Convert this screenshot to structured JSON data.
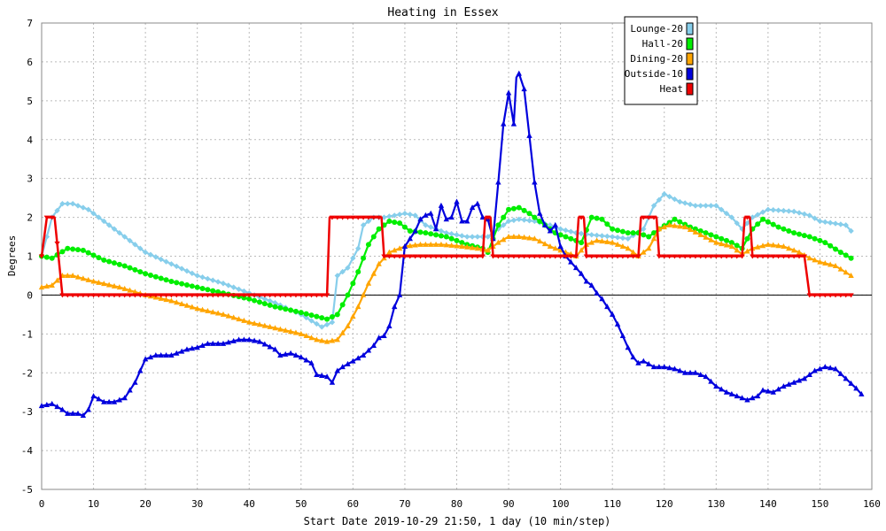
{
  "chart_data": {
    "type": "line",
    "title": "Heating in Essex",
    "xlabel": "Start Date 2019-10-29 21:50, 1 day (10 min/step)",
    "ylabel": "Degrees",
    "xlim": [
      0,
      160
    ],
    "ylim": [
      -5,
      7
    ],
    "x_ticks": [
      0,
      10,
      20,
      30,
      40,
      50,
      60,
      70,
      80,
      90,
      100,
      110,
      120,
      130,
      140,
      150,
      160
    ],
    "y_ticks": [
      -5,
      -4,
      -3,
      -2,
      -1,
      0,
      1,
      2,
      3,
      4,
      5,
      6,
      7
    ],
    "grid": true,
    "legend_position": "top-right",
    "series": [
      {
        "name": "Lounge-20",
        "color": "#87ceeb",
        "marker": "diamond",
        "points": [
          [
            0,
            1.0
          ],
          [
            2,
            2.0
          ],
          [
            4,
            2.35
          ],
          [
            6,
            2.35
          ],
          [
            9,
            2.2
          ],
          [
            12,
            1.9
          ],
          [
            16,
            1.5
          ],
          [
            20,
            1.1
          ],
          [
            25,
            0.8
          ],
          [
            30,
            0.5
          ],
          [
            35,
            0.3
          ],
          [
            40,
            0.05
          ],
          [
            45,
            -0.2
          ],
          [
            50,
            -0.5
          ],
          [
            54,
            -0.82
          ],
          [
            56,
            -0.7
          ],
          [
            57,
            0.5
          ],
          [
            59,
            0.7
          ],
          [
            61,
            1.2
          ],
          [
            62,
            1.8
          ],
          [
            64,
            2.0
          ],
          [
            66,
            2.0
          ],
          [
            70,
            2.1
          ],
          [
            72,
            2.05
          ],
          [
            74,
            1.8
          ],
          [
            78,
            1.6
          ],
          [
            82,
            1.5
          ],
          [
            86,
            1.5
          ],
          [
            88,
            1.7
          ],
          [
            90,
            1.9
          ],
          [
            92,
            1.95
          ],
          [
            95,
            1.9
          ],
          [
            98,
            1.8
          ],
          [
            100,
            1.7
          ],
          [
            103,
            1.6
          ],
          [
            106,
            1.55
          ],
          [
            110,
            1.5
          ],
          [
            113,
            1.45
          ],
          [
            116,
            1.7
          ],
          [
            118,
            2.3
          ],
          [
            120,
            2.6
          ],
          [
            123,
            2.4
          ],
          [
            126,
            2.3
          ],
          [
            130,
            2.3
          ],
          [
            133,
            2.0
          ],
          [
            135,
            1.7
          ],
          [
            137,
            2.0
          ],
          [
            140,
            2.2
          ],
          [
            145,
            2.15
          ],
          [
            148,
            2.05
          ],
          [
            150,
            1.9
          ],
          [
            155,
            1.8
          ],
          [
            156,
            1.65
          ]
        ]
      },
      {
        "name": "Hall-20",
        "color": "#00ee00",
        "marker": "circle",
        "points": [
          [
            0,
            1.0
          ],
          [
            2,
            0.95
          ],
          [
            5,
            1.2
          ],
          [
            8,
            1.15
          ],
          [
            12,
            0.9
          ],
          [
            16,
            0.75
          ],
          [
            20,
            0.55
          ],
          [
            25,
            0.35
          ],
          [
            30,
            0.2
          ],
          [
            35,
            0.05
          ],
          [
            40,
            -0.1
          ],
          [
            45,
            -0.3
          ],
          [
            50,
            -0.45
          ],
          [
            53,
            -0.55
          ],
          [
            55,
            -0.62
          ],
          [
            57,
            -0.5
          ],
          [
            59,
            0.0
          ],
          [
            61,
            0.6
          ],
          [
            63,
            1.3
          ],
          [
            65,
            1.7
          ],
          [
            67,
            1.9
          ],
          [
            69,
            1.85
          ],
          [
            71,
            1.65
          ],
          [
            74,
            1.6
          ],
          [
            78,
            1.5
          ],
          [
            82,
            1.3
          ],
          [
            85,
            1.2
          ],
          [
            86,
            1.1
          ],
          [
            88,
            1.8
          ],
          [
            90,
            2.2
          ],
          [
            92,
            2.25
          ],
          [
            94,
            2.1
          ],
          [
            96,
            1.9
          ],
          [
            99,
            1.6
          ],
          [
            102,
            1.45
          ],
          [
            104,
            1.35
          ],
          [
            106,
            2.0
          ],
          [
            108,
            1.95
          ],
          [
            110,
            1.7
          ],
          [
            113,
            1.6
          ],
          [
            115,
            1.6
          ],
          [
            117,
            1.5
          ],
          [
            119,
            1.7
          ],
          [
            122,
            1.95
          ],
          [
            125,
            1.75
          ],
          [
            128,
            1.6
          ],
          [
            131,
            1.45
          ],
          [
            133,
            1.35
          ],
          [
            135,
            1.2
          ],
          [
            137,
            1.7
          ],
          [
            139,
            1.95
          ],
          [
            142,
            1.75
          ],
          [
            145,
            1.6
          ],
          [
            148,
            1.5
          ],
          [
            151,
            1.35
          ],
          [
            154,
            1.1
          ],
          [
            156,
            0.95
          ]
        ]
      },
      {
        "name": "Dining-20",
        "color": "#ffa500",
        "marker": "triangle",
        "points": [
          [
            0,
            0.2
          ],
          [
            2,
            0.25
          ],
          [
            4,
            0.5
          ],
          [
            6,
            0.5
          ],
          [
            10,
            0.35
          ],
          [
            15,
            0.2
          ],
          [
            20,
            0.0
          ],
          [
            25,
            -0.15
          ],
          [
            30,
            -0.35
          ],
          [
            35,
            -0.5
          ],
          [
            40,
            -0.7
          ],
          [
            45,
            -0.85
          ],
          [
            50,
            -1.0
          ],
          [
            53,
            -1.15
          ],
          [
            55,
            -1.2
          ],
          [
            57,
            -1.15
          ],
          [
            59,
            -0.8
          ],
          [
            61,
            -0.3
          ],
          [
            63,
            0.3
          ],
          [
            65,
            0.8
          ],
          [
            67,
            1.1
          ],
          [
            70,
            1.25
          ],
          [
            73,
            1.3
          ],
          [
            77,
            1.3
          ],
          [
            81,
            1.25
          ],
          [
            84,
            1.2
          ],
          [
            86,
            1.15
          ],
          [
            88,
            1.35
          ],
          [
            90,
            1.5
          ],
          [
            92,
            1.5
          ],
          [
            95,
            1.45
          ],
          [
            98,
            1.25
          ],
          [
            101,
            1.1
          ],
          [
            103,
            1.0
          ],
          [
            105,
            1.3
          ],
          [
            107,
            1.4
          ],
          [
            110,
            1.35
          ],
          [
            113,
            1.2
          ],
          [
            115,
            1.0
          ],
          [
            117,
            1.2
          ],
          [
            119,
            1.7
          ],
          [
            121,
            1.8
          ],
          [
            124,
            1.75
          ],
          [
            127,
            1.55
          ],
          [
            130,
            1.35
          ],
          [
            133,
            1.25
          ],
          [
            135,
            1.05
          ],
          [
            137,
            1.2
          ],
          [
            140,
            1.3
          ],
          [
            143,
            1.25
          ],
          [
            146,
            1.1
          ],
          [
            148,
            0.95
          ],
          [
            150,
            0.85
          ],
          [
            153,
            0.75
          ],
          [
            156,
            0.5
          ]
        ]
      },
      {
        "name": "Outside-10",
        "color": "#0000dd",
        "marker": "triangle",
        "points": [
          [
            0,
            -2.85
          ],
          [
            2,
            -2.8
          ],
          [
            4,
            -2.95
          ],
          [
            5,
            -3.05
          ],
          [
            7,
            -3.05
          ],
          [
            8,
            -3.1
          ],
          [
            9,
            -2.95
          ],
          [
            10,
            -2.6
          ],
          [
            12,
            -2.75
          ],
          [
            14,
            -2.75
          ],
          [
            16,
            -2.65
          ],
          [
            18,
            -2.25
          ],
          [
            20,
            -1.65
          ],
          [
            22,
            -1.55
          ],
          [
            25,
            -1.55
          ],
          [
            28,
            -1.4
          ],
          [
            30,
            -1.35
          ],
          [
            32,
            -1.25
          ],
          [
            35,
            -1.25
          ],
          [
            38,
            -1.15
          ],
          [
            40,
            -1.15
          ],
          [
            42,
            -1.2
          ],
          [
            45,
            -1.4
          ],
          [
            46,
            -1.55
          ],
          [
            48,
            -1.5
          ],
          [
            50,
            -1.6
          ],
          [
            52,
            -1.75
          ],
          [
            53,
            -2.05
          ],
          [
            55,
            -2.1
          ],
          [
            56,
            -2.25
          ],
          [
            57,
            -1.95
          ],
          [
            58,
            -1.85
          ],
          [
            60,
            -1.7
          ],
          [
            62,
            -1.55
          ],
          [
            64,
            -1.3
          ],
          [
            65,
            -1.1
          ],
          [
            66,
            -1.05
          ],
          [
            67,
            -0.8
          ],
          [
            68,
            -0.3
          ],
          [
            69,
            0.0
          ],
          [
            70,
            1.25
          ],
          [
            72,
            1.65
          ],
          [
            73,
            1.95
          ],
          [
            74,
            2.05
          ],
          [
            75,
            2.1
          ],
          [
            76,
            1.7
          ],
          [
            77,
            2.3
          ],
          [
            78,
            1.95
          ],
          [
            79,
            2.0
          ],
          [
            80,
            2.4
          ],
          [
            81,
            1.9
          ],
          [
            82,
            1.9
          ],
          [
            83,
            2.25
          ],
          [
            84,
            2.35
          ],
          [
            85,
            2.0
          ],
          [
            86,
            1.95
          ],
          [
            87,
            1.45
          ],
          [
            88,
            2.9
          ],
          [
            89,
            4.4
          ],
          [
            90,
            5.2
          ],
          [
            91,
            4.4
          ],
          [
            91.5,
            5.6
          ],
          [
            92,
            5.7
          ],
          [
            93,
            5.3
          ],
          [
            94,
            4.1
          ],
          [
            95,
            2.9
          ],
          [
            96,
            2.1
          ],
          [
            97,
            1.8
          ],
          [
            98,
            1.65
          ],
          [
            99,
            1.8
          ],
          [
            100,
            1.25
          ],
          [
            101,
            1.0
          ],
          [
            102,
            0.85
          ],
          [
            103,
            0.7
          ],
          [
            104,
            0.55
          ],
          [
            105,
            0.35
          ],
          [
            106,
            0.25
          ],
          [
            107,
            0.05
          ],
          [
            108,
            -0.1
          ],
          [
            109,
            -0.3
          ],
          [
            110,
            -0.5
          ],
          [
            111,
            -0.75
          ],
          [
            112,
            -1.05
          ],
          [
            113,
            -1.35
          ],
          [
            114,
            -1.6
          ],
          [
            115,
            -1.75
          ],
          [
            116,
            -1.7
          ],
          [
            118,
            -1.85
          ],
          [
            120,
            -1.85
          ],
          [
            122,
            -1.9
          ],
          [
            124,
            -2.0
          ],
          [
            126,
            -2.0
          ],
          [
            128,
            -2.1
          ],
          [
            130,
            -2.35
          ],
          [
            132,
            -2.5
          ],
          [
            134,
            -2.6
          ],
          [
            136,
            -2.7
          ],
          [
            138,
            -2.6
          ],
          [
            139,
            -2.45
          ],
          [
            141,
            -2.5
          ],
          [
            143,
            -2.35
          ],
          [
            145,
            -2.25
          ],
          [
            147,
            -2.15
          ],
          [
            149,
            -1.95
          ],
          [
            151,
            -1.85
          ],
          [
            153,
            -1.9
          ],
          [
            155,
            -2.15
          ],
          [
            157,
            -2.4
          ],
          [
            158,
            -2.55
          ]
        ]
      },
      {
        "name": "Heat",
        "color": "#ee0000",
        "marker": "triangle-down",
        "points": [
          [
            0,
            1.0
          ],
          [
            1,
            2.0
          ],
          [
            2.5,
            2.0
          ],
          [
            4,
            0.0
          ],
          [
            55,
            0.0
          ],
          [
            55.5,
            2.0
          ],
          [
            65.5,
            2.0
          ],
          [
            66,
            1.0
          ],
          [
            85,
            1.0
          ],
          [
            85.5,
            2.0
          ],
          [
            86.5,
            2.0
          ],
          [
            87,
            1.0
          ],
          [
            103,
            1.0
          ],
          [
            103.5,
            2.0
          ],
          [
            104.5,
            2.0
          ],
          [
            105,
            1.0
          ],
          [
            115,
            1.0
          ],
          [
            115.5,
            2.0
          ],
          [
            118.5,
            2.0
          ],
          [
            119,
            1.0
          ],
          [
            135,
            1.0
          ],
          [
            135.5,
            2.0
          ],
          [
            136.5,
            2.0
          ],
          [
            137,
            1.0
          ],
          [
            147,
            1.0
          ],
          [
            148,
            0.0
          ],
          [
            156,
            0.0
          ]
        ]
      }
    ]
  }
}
